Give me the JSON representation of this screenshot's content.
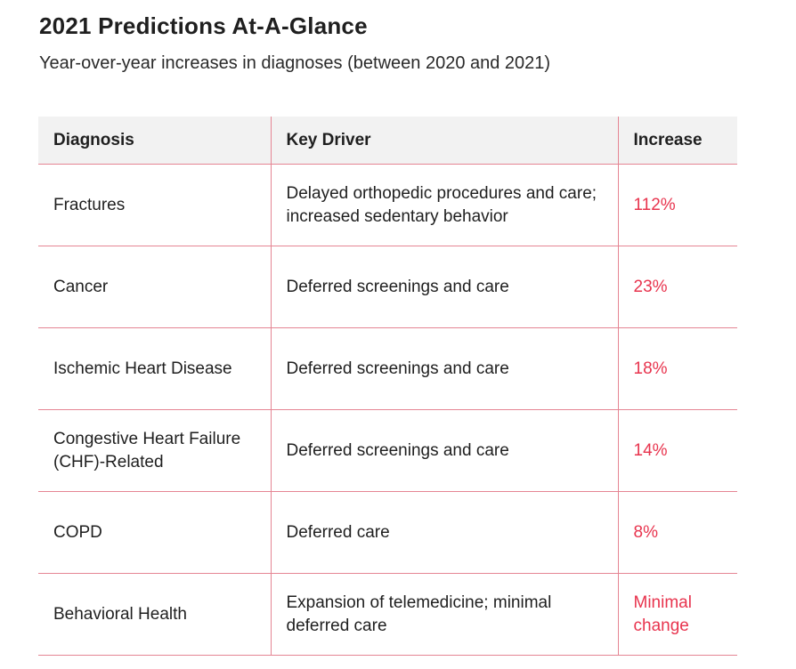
{
  "title": "2021 Predictions At-A-Glance",
  "subtitle": "Year-over-year increases in diagnoses (between 2020 and 2021)",
  "colors": {
    "accent": "#e8344e",
    "rule": "#e58593",
    "header_bg": "#f2f2f2"
  },
  "table": {
    "headers": [
      "Diagnosis",
      "Key Driver",
      "Increase"
    ],
    "rows": [
      {
        "diagnosis": "Fractures",
        "driver": "Delayed orthopedic procedures and care; increased sedentary behavior",
        "increase": "112%"
      },
      {
        "diagnosis": "Cancer",
        "driver": "Deferred screenings and care",
        "increase": "23%"
      },
      {
        "diagnosis": "Ischemic Heart Disease",
        "driver": "Deferred screenings and care",
        "increase": "18%"
      },
      {
        "diagnosis": "Congestive Heart Failure (CHF)-Related",
        "driver": "Deferred screenings and care",
        "increase": "14%"
      },
      {
        "diagnosis": "COPD",
        "driver": "Deferred care",
        "increase": "8%"
      },
      {
        "diagnosis": "Behavioral Health",
        "driver": "Expansion of telemedicine; minimal deferred care",
        "increase": "Minimal change"
      }
    ]
  }
}
